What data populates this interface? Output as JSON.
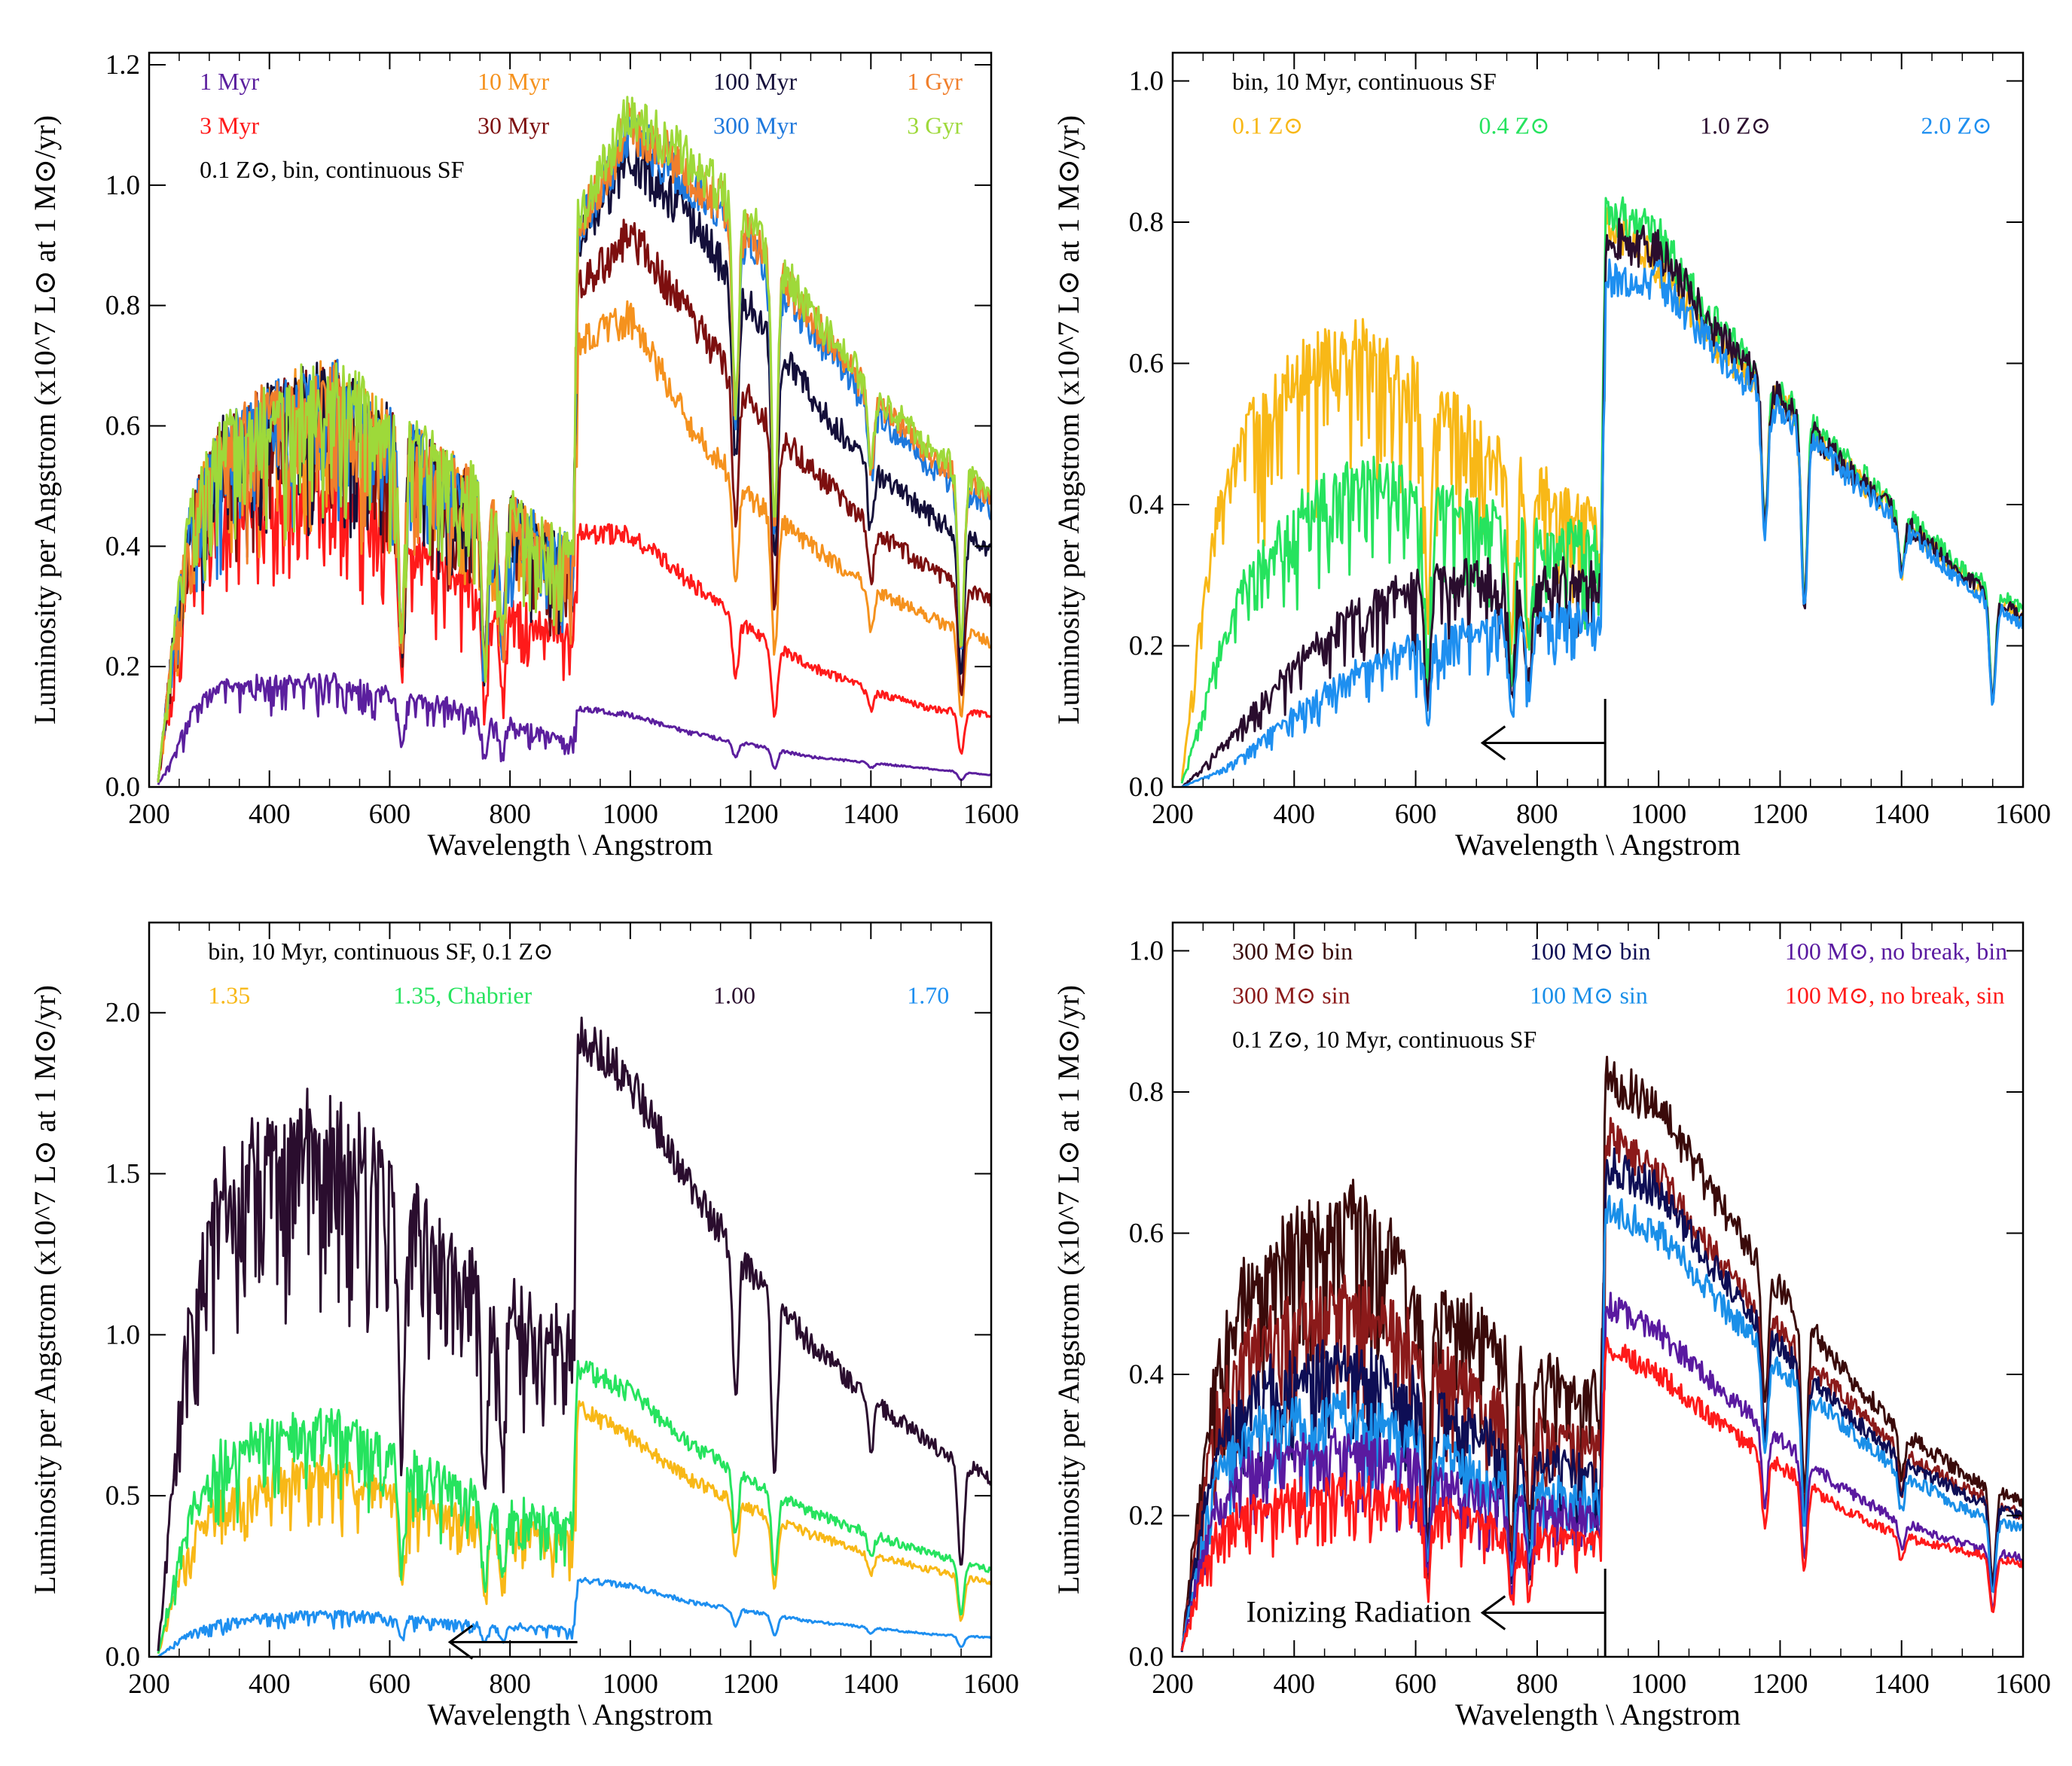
{
  "chart_data": [
    {
      "type": "line",
      "xlabel": "Wavelength \\ Angstrom",
      "ylabel": "Luminosity per Angstrom (x10^7 L⊙ at 1 M⊙/yr)",
      "xlim": [
        200,
        1600
      ],
      "ylim": [
        0,
        1.22
      ],
      "xticks": [
        200,
        400,
        600,
        800,
        1000,
        1200,
        1400,
        1600
      ],
      "yticks": [
        "0.0",
        "0.2",
        "0.4",
        "0.6",
        "0.8",
        "1.0",
        "1.2"
      ],
      "yticks_num": [
        0.0,
        0.2,
        0.4,
        0.6,
        0.8,
        1.0,
        1.2
      ],
      "note": "0.1 Z⊙, bin, continuous SF",
      "series": [
        {
          "name": "1 Myr",
          "color": "#5b1f9e",
          "x": [
            215,
            240,
            270,
            320,
            400,
            500,
            600,
            700,
            800,
            905,
            912,
            1000,
            1100,
            1200,
            1300,
            1400,
            1500,
            1600
          ],
          "y": [
            0.005,
            0.05,
            0.13,
            0.17,
            0.18,
            0.18,
            0.16,
            0.14,
            0.11,
            0.08,
            0.13,
            0.12,
            0.09,
            0.07,
            0.05,
            0.04,
            0.03,
            0.02
          ]
        },
        {
          "name": "3 Myr",
          "color": "#ff1a1a",
          "x": [
            215,
            240,
            270,
            320,
            400,
            500,
            600,
            700,
            800,
            905,
            912,
            1000,
            1100,
            1200,
            1300,
            1400,
            1500,
            1600
          ],
          "y": [
            0.01,
            0.2,
            0.38,
            0.47,
            0.5,
            0.52,
            0.45,
            0.36,
            0.3,
            0.26,
            0.42,
            0.42,
            0.34,
            0.26,
            0.2,
            0.16,
            0.13,
            0.12
          ]
        },
        {
          "name": "10 Myr",
          "color": "#f5921e",
          "x": [
            215,
            240,
            270,
            320,
            400,
            500,
            600,
            700,
            800,
            905,
            912,
            1000,
            1100,
            1200,
            1300,
            1400,
            1500,
            1600
          ],
          "y": [
            0.01,
            0.25,
            0.46,
            0.58,
            0.64,
            0.68,
            0.6,
            0.53,
            0.46,
            0.39,
            0.74,
            0.78,
            0.6,
            0.48,
            0.4,
            0.33,
            0.28,
            0.24
          ]
        },
        {
          "name": "30 Myr",
          "color": "#7d0f0f",
          "x": [
            215,
            240,
            270,
            320,
            400,
            500,
            600,
            700,
            800,
            905,
            912,
            1000,
            1100,
            1200,
            1300,
            1400,
            1500,
            1600
          ],
          "y": [
            0.01,
            0.25,
            0.46,
            0.58,
            0.64,
            0.68,
            0.6,
            0.53,
            0.46,
            0.39,
            0.82,
            0.92,
            0.78,
            0.64,
            0.53,
            0.43,
            0.36,
            0.31
          ]
        },
        {
          "name": "100 Myr",
          "color": "#140f3a",
          "x": [
            215,
            240,
            270,
            320,
            400,
            500,
            600,
            700,
            800,
            905,
            912,
            1000,
            1100,
            1200,
            1300,
            1400,
            1500,
            1600
          ],
          "y": [
            0.01,
            0.25,
            0.46,
            0.58,
            0.64,
            0.68,
            0.6,
            0.53,
            0.46,
            0.39,
            0.9,
            1.05,
            0.94,
            0.8,
            0.65,
            0.53,
            0.45,
            0.39
          ]
        },
        {
          "name": "300 Myr",
          "color": "#1e78dc",
          "x": [
            215,
            240,
            270,
            320,
            400,
            500,
            600,
            700,
            800,
            905,
            912,
            1000,
            1100,
            1200,
            1300,
            1400,
            1500,
            1600
          ],
          "y": [
            0.01,
            0.25,
            0.46,
            0.58,
            0.64,
            0.68,
            0.6,
            0.53,
            0.46,
            0.39,
            0.92,
            1.09,
            1.0,
            0.9,
            0.76,
            0.63,
            0.53,
            0.46
          ]
        },
        {
          "name": "1 Gyr",
          "color": "#f07f2c",
          "x": [
            215,
            240,
            270,
            320,
            400,
            500,
            600,
            700,
            800,
            905,
            912,
            1000,
            1100,
            1200,
            1300,
            1400,
            1500,
            1600
          ],
          "y": [
            0.01,
            0.25,
            0.46,
            0.58,
            0.64,
            0.68,
            0.6,
            0.53,
            0.46,
            0.39,
            0.93,
            1.1,
            1.02,
            0.92,
            0.78,
            0.65,
            0.55,
            0.48
          ]
        },
        {
          "name": "3 Gyr",
          "color": "#9ed93a",
          "x": [
            215,
            240,
            270,
            320,
            400,
            500,
            600,
            700,
            800,
            905,
            912,
            1000,
            1100,
            1200,
            1300,
            1400,
            1500,
            1600
          ],
          "y": [
            0.01,
            0.26,
            0.47,
            0.59,
            0.65,
            0.69,
            0.61,
            0.54,
            0.47,
            0.4,
            0.94,
            1.12,
            1.04,
            0.94,
            0.79,
            0.66,
            0.56,
            0.49
          ]
        }
      ]
    },
    {
      "type": "line",
      "xlabel": "Wavelength \\ Angstrom",
      "ylabel": "Luminosity per Angstrom (x10^7 L⊙ at 1 M⊙/yr)",
      "xlim": [
        200,
        1600
      ],
      "ylim": [
        0,
        1.04
      ],
      "xticks": [
        200,
        400,
        600,
        800,
        1000,
        1200,
        1400,
        1600
      ],
      "yticks": [
        "0.0",
        "0.2",
        "0.4",
        "0.6",
        "0.8",
        "1.0"
      ],
      "yticks_num": [
        0.0,
        0.2,
        0.4,
        0.6,
        0.8,
        1.0
      ],
      "note": "bin, 10 Myr, continuous SF",
      "series": [
        {
          "name": "0.1 Z⊙",
          "color": "#f8b817",
          "x": [
            215,
            240,
            270,
            320,
            400,
            500,
            600,
            700,
            800,
            905,
            912,
            1000,
            1100,
            1200,
            1300,
            1400,
            1500,
            1600
          ],
          "y": [
            0.01,
            0.2,
            0.38,
            0.52,
            0.6,
            0.64,
            0.58,
            0.5,
            0.44,
            0.38,
            0.8,
            0.74,
            0.62,
            0.55,
            0.46,
            0.38,
            0.3,
            0.24
          ]
        },
        {
          "name": "0.4 Z⊙",
          "color": "#26e35e",
          "x": [
            215,
            240,
            270,
            320,
            400,
            500,
            600,
            700,
            800,
            905,
            912,
            1000,
            1100,
            1200,
            1300,
            1400,
            1500,
            1600
          ],
          "y": [
            0.005,
            0.08,
            0.18,
            0.3,
            0.4,
            0.45,
            0.43,
            0.4,
            0.37,
            0.35,
            0.82,
            0.78,
            0.65,
            0.56,
            0.47,
            0.39,
            0.31,
            0.25
          ]
        },
        {
          "name": "1.0 Z⊙",
          "color": "#2a0d2e",
          "x": [
            215,
            240,
            270,
            320,
            400,
            500,
            600,
            700,
            800,
            905,
            912,
            1000,
            1100,
            1200,
            1300,
            1400,
            1500,
            1600
          ],
          "y": [
            0.0,
            0.02,
            0.05,
            0.1,
            0.18,
            0.26,
            0.3,
            0.31,
            0.31,
            0.31,
            0.78,
            0.76,
            0.64,
            0.55,
            0.46,
            0.38,
            0.3,
            0.24
          ]
        },
        {
          "name": "2.0 Z⊙",
          "color": "#1e8ff0",
          "x": [
            215,
            240,
            270,
            320,
            400,
            500,
            600,
            700,
            800,
            905,
            912,
            1000,
            1100,
            1200,
            1300,
            1400,
            1500,
            1600
          ],
          "y": [
            0.0,
            0.01,
            0.02,
            0.05,
            0.11,
            0.17,
            0.21,
            0.23,
            0.25,
            0.25,
            0.72,
            0.72,
            0.61,
            0.53,
            0.45,
            0.37,
            0.29,
            0.23
          ]
        }
      ]
    },
    {
      "type": "line",
      "xlabel": "Wavelength \\ Angstrom",
      "ylabel": "Luminosity per Angstrom (x10^7 L⊙ at 1 M⊙/yr)",
      "xlim": [
        200,
        1600
      ],
      "ylim": [
        0,
        2.28
      ],
      "xticks": [
        200,
        400,
        600,
        800,
        1000,
        1200,
        1400,
        1600
      ],
      "yticks": [
        "0.0",
        "0.5",
        "1.0",
        "1.5",
        "2.0"
      ],
      "yticks_num": [
        0.0,
        0.5,
        1.0,
        1.5,
        2.0
      ],
      "note": "bin, 10 Myr, continuous SF, 0.1 Z⊙",
      "series": [
        {
          "name": "1.35",
          "color": "#f8b817",
          "x": [
            215,
            240,
            270,
            320,
            400,
            500,
            600,
            700,
            800,
            905,
            912,
            1000,
            1100,
            1200,
            1300,
            1400,
            1500,
            1600
          ],
          "y": [
            0.01,
            0.2,
            0.38,
            0.5,
            0.57,
            0.6,
            0.53,
            0.46,
            0.41,
            0.37,
            0.78,
            0.68,
            0.55,
            0.46,
            0.38,
            0.32,
            0.27,
            0.23
          ]
        },
        {
          "name": "1.35, Chabrier",
          "color": "#26e35e",
          "x": [
            215,
            240,
            270,
            320,
            400,
            500,
            600,
            700,
            800,
            905,
            912,
            1000,
            1100,
            1200,
            1300,
            1400,
            1500,
            1600
          ],
          "y": [
            0.01,
            0.25,
            0.48,
            0.64,
            0.72,
            0.75,
            0.66,
            0.56,
            0.48,
            0.43,
            0.9,
            0.82,
            0.66,
            0.55,
            0.45,
            0.38,
            0.32,
            0.27
          ]
        },
        {
          "name": "1.00",
          "color": "#2a0d2e",
          "x": [
            215,
            240,
            270,
            320,
            400,
            500,
            600,
            700,
            800,
            905,
            912,
            1000,
            1100,
            1200,
            1300,
            1400,
            1500,
            1600
          ],
          "y": [
            0.02,
            0.6,
            1.15,
            1.5,
            1.65,
            1.7,
            1.5,
            1.28,
            1.12,
            1.02,
            1.95,
            1.78,
            1.45,
            1.2,
            0.97,
            0.8,
            0.66,
            0.55
          ]
        },
        {
          "name": "1.70",
          "color": "#1e8ff0",
          "x": [
            215,
            240,
            270,
            320,
            400,
            500,
            600,
            700,
            800,
            905,
            912,
            1000,
            1100,
            1200,
            1300,
            1400,
            1500,
            1600
          ],
          "y": [
            0.0,
            0.04,
            0.08,
            0.11,
            0.13,
            0.14,
            0.13,
            0.11,
            0.1,
            0.09,
            0.24,
            0.22,
            0.17,
            0.14,
            0.11,
            0.09,
            0.07,
            0.06
          ]
        }
      ]
    },
    {
      "type": "line",
      "xlabel": "Wavelength \\ Angstrom",
      "ylabel": "Luminosity per Angstrom (x10^7 L⊙ at 1 M⊙/yr)",
      "xlim": [
        200,
        1600
      ],
      "ylim": [
        0,
        1.04
      ],
      "xticks": [
        200,
        400,
        600,
        800,
        1000,
        1200,
        1400,
        1600
      ],
      "yticks": [
        "0.0",
        "0.2",
        "0.4",
        "0.6",
        "0.8",
        "1.0"
      ],
      "yticks_num": [
        0.0,
        0.2,
        0.4,
        0.6,
        0.8,
        1.0
      ],
      "note": "0.1 Z⊙, 10 Myr, continuous SF",
      "annotation": "Ionizing Radiation",
      "series": [
        {
          "name": "300 M⊙ bin",
          "color": "#3a0a0a",
          "x": [
            215,
            240,
            270,
            320,
            400,
            500,
            600,
            700,
            800,
            905,
            912,
            1000,
            1100,
            1200,
            1300,
            1400,
            1500,
            1600
          ],
          "y": [
            0.01,
            0.22,
            0.42,
            0.55,
            0.61,
            0.64,
            0.56,
            0.48,
            0.42,
            0.38,
            0.82,
            0.78,
            0.64,
            0.52,
            0.41,
            0.32,
            0.26,
            0.22
          ]
        },
        {
          "name": "300 M⊙ sin",
          "color": "#8b1a1a",
          "x": [
            215,
            240,
            270,
            320,
            400,
            500,
            600,
            700,
            800,
            905,
            912,
            1000,
            1100,
            1200,
            1300,
            1400,
            1500,
            1600
          ],
          "y": [
            0.01,
            0.18,
            0.35,
            0.46,
            0.5,
            0.52,
            0.46,
            0.39,
            0.34,
            0.31,
            0.74,
            0.68,
            0.56,
            0.46,
            0.37,
            0.29,
            0.24,
            0.2
          ]
        },
        {
          "name": "100 M⊙ bin",
          "color": "#0e0e55",
          "x": [
            215,
            240,
            270,
            320,
            400,
            500,
            600,
            700,
            800,
            905,
            912,
            1000,
            1100,
            1200,
            1300,
            1400,
            1500,
            1600
          ],
          "y": [
            0.01,
            0.16,
            0.3,
            0.39,
            0.42,
            0.43,
            0.39,
            0.33,
            0.29,
            0.27,
            0.7,
            0.66,
            0.54,
            0.44,
            0.35,
            0.28,
            0.23,
            0.2
          ]
        },
        {
          "name": "100 M⊙ sin",
          "color": "#1a8fe8",
          "x": [
            215,
            240,
            270,
            320,
            400,
            500,
            600,
            700,
            800,
            905,
            912,
            1000,
            1100,
            1200,
            1300,
            1400,
            1500,
            1600
          ],
          "y": [
            0.01,
            0.13,
            0.26,
            0.33,
            0.35,
            0.36,
            0.32,
            0.28,
            0.25,
            0.24,
            0.64,
            0.6,
            0.5,
            0.41,
            0.33,
            0.26,
            0.21,
            0.18
          ]
        },
        {
          "name": "100 M⊙, no break, bin",
          "color": "#5a1aa0",
          "x": [
            215,
            240,
            270,
            320,
            400,
            500,
            600,
            700,
            800,
            905,
            912,
            1000,
            1100,
            1200,
            1300,
            1400,
            1500,
            1600
          ],
          "y": [
            0.01,
            0.12,
            0.22,
            0.28,
            0.3,
            0.31,
            0.28,
            0.24,
            0.22,
            0.21,
            0.5,
            0.46,
            0.38,
            0.31,
            0.24,
            0.19,
            0.16,
            0.14
          ]
        },
        {
          "name": "100 M⊙, no break, sin",
          "color": "#ff1a1a",
          "x": [
            215,
            240,
            270,
            320,
            400,
            500,
            600,
            700,
            800,
            905,
            912,
            1000,
            1100,
            1200,
            1300,
            1400,
            1500,
            1600
          ],
          "y": [
            0.01,
            0.1,
            0.18,
            0.22,
            0.24,
            0.25,
            0.23,
            0.2,
            0.18,
            0.18,
            0.44,
            0.4,
            0.33,
            0.27,
            0.21,
            0.17,
            0.15,
            0.13
          ]
        }
      ]
    }
  ]
}
